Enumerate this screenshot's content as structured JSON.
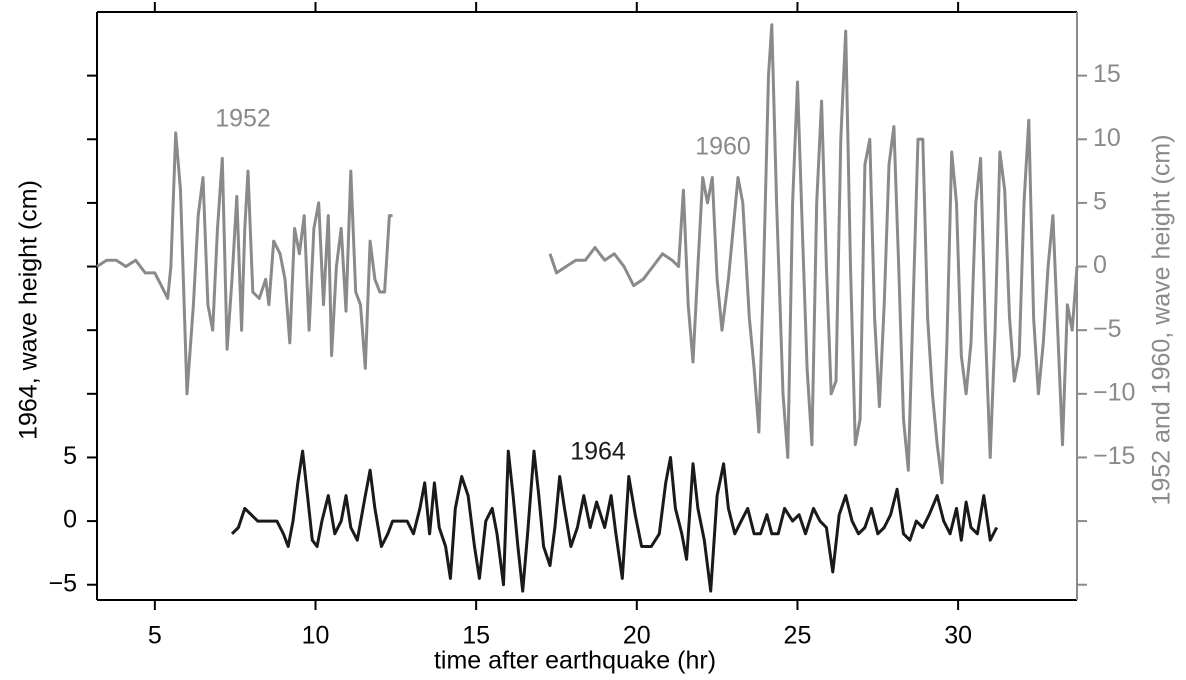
{
  "chart_data": {
    "type": "line",
    "xlabel": "time after earthquake (hr)",
    "ylabel": "1964, wave height (cm)",
    "y2label": "1952 and 1960, wave height (cm)",
    "xlim": [
      3.2,
      33.7
    ],
    "xticks": [
      5,
      10,
      15,
      20,
      25,
      30
    ],
    "ylim": [
      -6.2,
      40
    ],
    "yticks": [
      {
        "value": -5,
        "label": "−5"
      },
      0,
      5
    ],
    "yticks_unlabeled": [
      10,
      15,
      20,
      25,
      30,
      35
    ],
    "y2lim": [
      -26.2,
      20
    ],
    "y2ticks": [
      {
        "value": -15,
        "label": "−15"
      },
      {
        "value": -10,
        "label": "−10"
      },
      {
        "value": -5,
        "label": "−5"
      },
      0,
      5,
      10,
      15
    ],
    "y2ticks_unlabeled": [
      -25,
      -20
    ],
    "series": [
      {
        "name": "1952",
        "color": "#8a8a8a",
        "axis": "y2",
        "x": [
          3.2,
          3.5,
          3.8,
          4.1,
          4.4,
          4.7,
          5.0,
          5.2,
          5.4,
          5.5,
          5.65,
          5.8,
          6.0,
          6.2,
          6.35,
          6.5,
          6.65,
          6.8,
          6.95,
          7.1,
          7.25,
          7.4,
          7.55,
          7.7,
          7.8,
          7.9,
          8.05,
          8.25,
          8.45,
          8.55,
          8.7,
          8.9,
          9.05,
          9.2,
          9.35,
          9.5,
          9.65,
          9.8,
          9.95,
          10.1,
          10.25,
          10.4,
          10.5,
          10.65,
          10.8,
          10.95,
          11.1,
          11.25,
          11.4,
          11.55,
          11.7,
          11.85,
          12.0,
          12.15,
          12.3,
          12.4
        ],
        "values": [
          0,
          0.5,
          0.5,
          0,
          0.5,
          -0.5,
          -0.5,
          -1.5,
          -2.5,
          0,
          10.5,
          6,
          -10,
          -3,
          4,
          7,
          -3,
          -5,
          3,
          8.5,
          -6.5,
          -1,
          5.5,
          -5,
          3,
          7.5,
          -2,
          -2.5,
          -1,
          -3,
          2,
          1,
          -1,
          -6,
          3,
          1,
          4,
          -5,
          3,
          5,
          -3,
          4,
          -7,
          0,
          3,
          -3.5,
          7.5,
          -2,
          -3,
          -8,
          2,
          -1,
          -2,
          -2,
          4,
          4
        ]
      },
      {
        "name": "1960",
        "color": "#8a8a8a",
        "axis": "y2",
        "x": [
          17.3,
          17.5,
          17.8,
          18.1,
          18.4,
          18.7,
          19.0,
          19.3,
          19.6,
          19.9,
          20.2,
          20.5,
          20.8,
          21.1,
          21.3,
          21.45,
          21.6,
          21.75,
          21.9,
          22.05,
          22.2,
          22.35,
          22.5,
          22.65,
          22.85,
          23.0,
          23.15,
          23.3,
          23.5,
          23.65,
          23.8,
          23.95,
          24.1,
          24.2,
          24.35,
          24.55,
          24.7,
          24.85,
          25.0,
          25.15,
          25.3,
          25.45,
          25.6,
          25.75,
          25.9,
          26.05,
          26.2,
          26.35,
          26.5,
          26.65,
          26.8,
          26.95,
          27.1,
          27.25,
          27.4,
          27.55,
          27.7,
          27.85,
          28.0,
          28.15,
          28.3,
          28.45,
          28.6,
          28.75,
          28.9,
          29.05,
          29.2,
          29.35,
          29.5,
          29.65,
          29.8,
          29.95,
          30.1,
          30.25,
          30.4,
          30.55,
          30.7,
          30.85,
          31.0,
          31.15,
          31.3,
          31.45,
          31.6,
          31.75,
          31.9,
          32.05,
          32.2,
          32.35,
          32.5,
          32.65,
          32.8,
          32.95,
          33.1,
          33.25,
          33.4,
          33.55,
          33.7
        ],
        "values": [
          1,
          -0.5,
          0,
          0.5,
          0.5,
          1.5,
          0.5,
          1,
          0,
          -1.5,
          -1,
          0,
          1,
          0.5,
          0,
          6,
          -3,
          -7.5,
          0,
          7,
          5,
          7,
          -1,
          -5,
          -1,
          3,
          7,
          5,
          -4,
          -8,
          -13,
          0,
          15,
          19,
          5,
          -10,
          -15,
          5,
          14.5,
          3,
          -8,
          -14,
          5,
          13,
          0,
          -10,
          -9,
          10,
          18.5,
          0,
          -14,
          -12,
          8,
          10,
          -4,
          -11,
          -3,
          8,
          11,
          0,
          -12,
          -16,
          -3,
          10,
          10,
          -4,
          -10,
          -14,
          -17,
          -6,
          9,
          5,
          -7,
          -10,
          -6,
          5,
          8.5,
          -5,
          -15,
          -5,
          9,
          6,
          -4,
          -9,
          -7,
          5,
          11.5,
          -4,
          -10,
          -6,
          0,
          4,
          -5,
          -14,
          -3,
          -5,
          0
        ]
      },
      {
        "name": "1964",
        "color": "#1a1a1a",
        "x": [
          7.4,
          7.6,
          7.8,
          8.0,
          8.2,
          8.5,
          8.8,
          9.0,
          9.15,
          9.3,
          9.45,
          9.6,
          9.75,
          9.9,
          10.05,
          10.2,
          10.4,
          10.6,
          10.8,
          10.95,
          11.1,
          11.3,
          11.55,
          11.7,
          11.85,
          12.05,
          12.25,
          12.4,
          12.6,
          12.85,
          13.05,
          13.25,
          13.4,
          13.55,
          13.7,
          13.85,
          14.05,
          14.2,
          14.35,
          14.55,
          14.75,
          14.95,
          15.1,
          15.3,
          15.5,
          15.65,
          15.85,
          16.0,
          16.15,
          16.3,
          16.45,
          16.6,
          16.8,
          16.95,
          17.1,
          17.3,
          17.45,
          17.6,
          17.75,
          17.95,
          18.15,
          18.35,
          18.55,
          18.75,
          19.0,
          19.2,
          19.35,
          19.55,
          19.75,
          19.95,
          20.15,
          20.45,
          20.7,
          20.9,
          21.05,
          21.2,
          21.4,
          21.55,
          21.75,
          21.9,
          22.1,
          22.3,
          22.5,
          22.7,
          22.85,
          23.05,
          23.25,
          23.45,
          23.65,
          23.85,
          24.05,
          24.2,
          24.4,
          24.6,
          24.85,
          25.05,
          25.25,
          25.5,
          25.7,
          25.9,
          26.1,
          26.3,
          26.5,
          26.7,
          26.9,
          27.1,
          27.3,
          27.5,
          27.7,
          27.9,
          28.1,
          28.3,
          28.5,
          28.7,
          28.9,
          29.1,
          29.35,
          29.55,
          29.75,
          29.95,
          30.1,
          30.25,
          30.4,
          30.6,
          30.8,
          31.0,
          31.2
        ],
        "values": [
          -1,
          -0.5,
          1,
          0.5,
          0,
          0,
          0,
          -1,
          -2,
          0,
          3,
          5.5,
          2,
          -1.5,
          -2,
          0,
          2,
          -1,
          0,
          2,
          -0.5,
          -1.5,
          2,
          4,
          1,
          -2,
          -1,
          0,
          0,
          0,
          -1,
          1,
          3,
          -1,
          3,
          -0.5,
          -2,
          -4.5,
          1,
          3.5,
          2,
          -2,
          -4.5,
          0,
          1,
          -1,
          -5,
          5.5,
          2,
          -2,
          -5.5,
          -1,
          5.5,
          2,
          -2,
          -3.5,
          -0.5,
          3.5,
          1,
          -2,
          -0.5,
          2,
          -0.5,
          1.5,
          -0.5,
          2,
          -1,
          -4.5,
          3.5,
          0.5,
          -2,
          -2,
          -1,
          3,
          5,
          1,
          -1,
          -3,
          4.5,
          1,
          -1.5,
          -5.5,
          2,
          4.5,
          1,
          -1,
          0,
          1,
          -1,
          -1,
          0.5,
          -1,
          -1,
          1,
          0,
          0.5,
          -1,
          1,
          0,
          -0.5,
          -4,
          0.5,
          2,
          0,
          -1,
          -0.5,
          1,
          -1,
          -0.5,
          0.5,
          2.5,
          -1,
          -1.5,
          0,
          -0.5,
          0.5,
          2,
          0,
          -1,
          1,
          -1.5,
          1.5,
          -0.5,
          -1,
          2,
          -1.5,
          -0.5
        ]
      }
    ]
  }
}
